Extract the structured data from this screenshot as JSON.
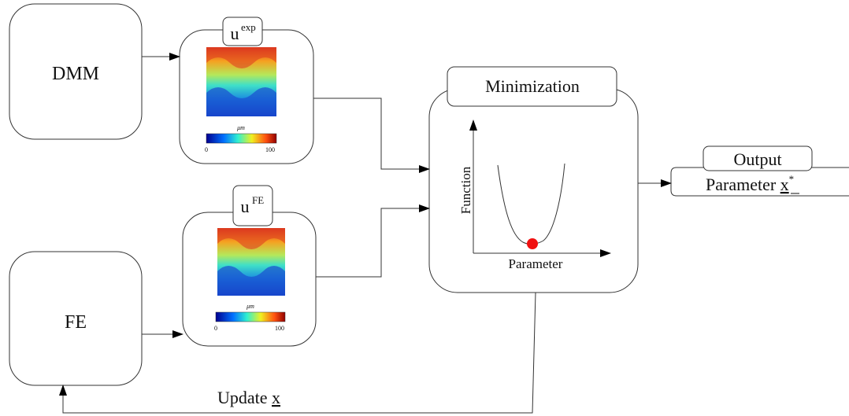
{
  "nodes": [
    {
      "label": "DMM"
    },
    {
      "label": "FE"
    }
  ],
  "fields": [
    {
      "label": "u",
      "superscript": "exp",
      "colorbar": {
        "unit": "μm",
        "min": 0,
        "max": 100
      }
    },
    {
      "label": "u",
      "superscript": "FE",
      "colorbar": {
        "unit": "μm",
        "min": 0,
        "max": 100
      }
    }
  ],
  "minimization": {
    "title": "Minimization",
    "y_axis": "Function",
    "x_axis": "Parameter"
  },
  "output": {
    "title": "Output",
    "label": "Parameter",
    "variable": "x",
    "superscript": "*"
  },
  "feedback": {
    "label": "Update",
    "variable": "x"
  }
}
